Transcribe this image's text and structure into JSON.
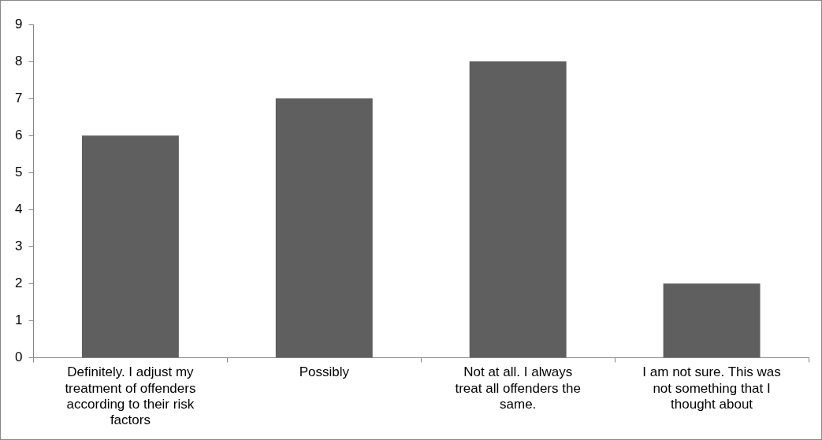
{
  "chart_data": {
    "type": "bar",
    "categories": [
      "Definitely. I adjust my treatment of offenders according to their risk factors",
      "Possibly",
      "Not at all. I always treat all offenders the same.",
      "I am not sure. This was not something that I thought about"
    ],
    "values": [
      6,
      7,
      8,
      2
    ],
    "color": "#5f5f5f",
    "ylim": [
      0,
      9
    ],
    "yticks": [
      0,
      1,
      2,
      3,
      4,
      5,
      6,
      7,
      8,
      9
    ],
    "grid": false,
    "legend": false
  }
}
